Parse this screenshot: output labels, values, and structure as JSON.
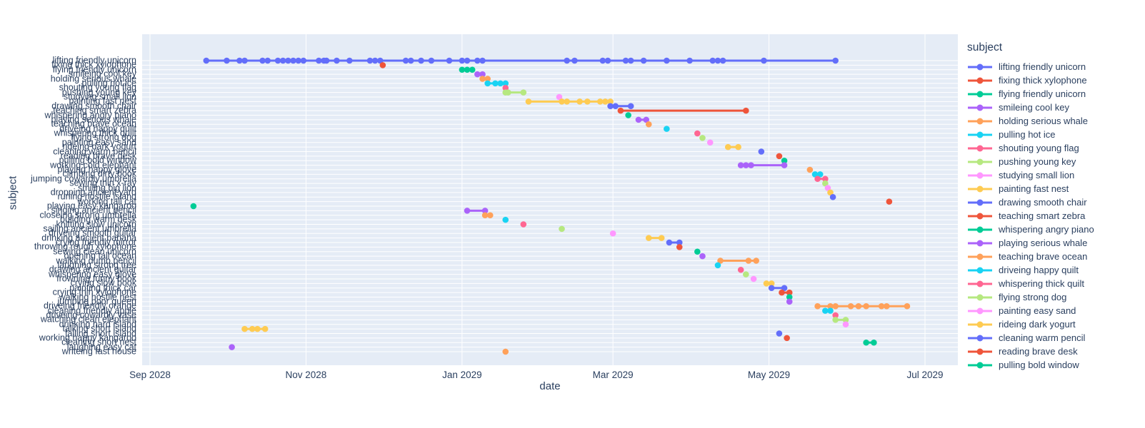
{
  "figure": {
    "colors": {
      "paper_bg": "#FFFFFF",
      "plot_bg": "#E5ECF6",
      "grid": "#FFFFFF",
      "text": "#2A3F5F"
    },
    "legend": {
      "title": "subject",
      "visible_count": 23
    }
  },
  "chart_data": {
    "type": "scatter",
    "title": "",
    "xlabel": "date",
    "ylabel": "subject",
    "legend_position": "right",
    "grid": true,
    "x_range": [
      "2028-09-01",
      "2029-07-01"
    ],
    "x_tick_dates": [
      "2028-09-01",
      "2028-11-01",
      "2029-01-01",
      "2029-03-01",
      "2029-05-01",
      "2029-07-01"
    ],
    "x_tick_labels": [
      "Sep 2028",
      "Nov 2028",
      "Jan 2029",
      "Mar 2029",
      "May 2029",
      "Jul 2029"
    ],
    "palette": [
      "#636EFA",
      "#EF553B",
      "#00CC96",
      "#AB63FA",
      "#FFA15A",
      "#19D3F3",
      "#FF6692",
      "#B6E880",
      "#FF97FF",
      "#FECB52"
    ],
    "series": [
      {
        "name": "lifting friendly unicorn",
        "dates": [
          "2028-09-23",
          "2028-10-01",
          "2028-10-06",
          "2028-10-08",
          "2028-10-15",
          "2028-10-17",
          "2028-10-21",
          "2028-10-23",
          "2028-10-25",
          "2028-10-27",
          "2028-10-29",
          "2028-10-31",
          "2028-11-06",
          "2028-11-08",
          "2028-11-09",
          "2028-11-13",
          "2028-11-18",
          "2028-11-26",
          "2028-11-28",
          "2028-11-30",
          "2028-12-10",
          "2028-12-12",
          "2028-12-16",
          "2028-12-20",
          "2028-12-27",
          "2029-01-01",
          "2029-01-03",
          "2029-01-07",
          "2029-01-09",
          "2029-02-11",
          "2029-02-14",
          "2029-02-25",
          "2029-02-27",
          "2029-03-06",
          "2029-03-08",
          "2029-03-13",
          "2029-03-22",
          "2029-03-31",
          "2029-04-09",
          "2029-04-11",
          "2029-04-13",
          "2029-04-29",
          "2029-05-27"
        ]
      },
      {
        "name": "fixing thick xylophone",
        "dates": [
          "2028-12-01"
        ]
      },
      {
        "name": "flying friendly unicorn",
        "dates": [
          "2029-01-01",
          "2029-01-03",
          "2029-01-05"
        ]
      },
      {
        "name": "smileing cool key",
        "dates": [
          "2029-01-07",
          "2029-01-09"
        ]
      },
      {
        "name": "holding serious whale",
        "dates": [
          "2029-01-09",
          "2029-01-11"
        ]
      },
      {
        "name": "pulling hot ice",
        "dates": [
          "2029-01-11",
          "2029-01-14",
          "2029-01-16",
          "2029-01-18"
        ]
      },
      {
        "name": "shouting young flag",
        "dates": [
          "2029-01-18"
        ]
      },
      {
        "name": "pushing young key",
        "dates": [
          "2029-01-18",
          "2029-01-19",
          "2029-01-25"
        ]
      },
      {
        "name": "studying small lion",
        "dates": [
          "2029-02-08"
        ]
      },
      {
        "name": "painting fast nest",
        "dates": [
          "2029-01-27",
          "2029-02-09",
          "2029-02-11",
          "2029-02-16",
          "2029-02-19",
          "2029-02-24",
          "2029-02-26",
          "2029-02-28"
        ]
      },
      {
        "name": "drawing smooth chair",
        "dates": [
          "2029-02-28",
          "2029-03-02",
          "2029-03-08"
        ]
      },
      {
        "name": "teaching smart zebra",
        "dates": [
          "2029-03-04",
          "2029-04-22"
        ]
      },
      {
        "name": "whispering angry piano",
        "dates": [
          "2029-03-07"
        ]
      },
      {
        "name": "playing serious whale",
        "dates": [
          "2029-03-11",
          "2029-03-14"
        ]
      },
      {
        "name": "teaching brave ocean",
        "dates": [
          "2029-03-15"
        ]
      },
      {
        "name": "driveing happy quilt",
        "dates": [
          "2029-03-22"
        ]
      },
      {
        "name": "whispering thick quilt",
        "dates": [
          "2029-04-03"
        ]
      },
      {
        "name": "flying strong dog",
        "dates": [
          "2029-04-05"
        ]
      },
      {
        "name": "painting easy sand",
        "dates": [
          "2029-04-08"
        ]
      },
      {
        "name": "rideing dark yogurt",
        "dates": [
          "2029-04-15",
          "2029-04-19"
        ]
      },
      {
        "name": "cleaning warm pencil",
        "dates": [
          "2029-04-28"
        ]
      },
      {
        "name": "reading brave desk",
        "dates": [
          "2029-05-05"
        ]
      },
      {
        "name": "pulling bold window",
        "dates": [
          "2029-05-07"
        ]
      },
      {
        "name": "working cold elephant",
        "dates": [
          "2029-04-20",
          "2029-04-22",
          "2029-04-24",
          "2029-05-07"
        ]
      },
      {
        "name": "playing happy glove",
        "dates": [
          "2029-05-17"
        ]
      },
      {
        "name": "climbing dirty book",
        "dates": [
          "2029-05-19",
          "2029-05-21"
        ]
      },
      {
        "name": "jumping cowardly umbrella",
        "dates": [
          "2029-05-20",
          "2029-05-23"
        ]
      },
      {
        "name": "sewing thin x-ray",
        "dates": [
          "2029-05-23"
        ]
      },
      {
        "name": "smiling big lion",
        "dates": [
          "2029-05-24"
        ]
      },
      {
        "name": "dropping ancient yard",
        "dates": [
          "2029-05-25"
        ]
      },
      {
        "name": "runing hostile island",
        "dates": [
          "2029-05-26"
        ]
      },
      {
        "name": "working tall cat",
        "dates": [
          "2029-06-17"
        ]
      },
      {
        "name": "playing easy kangaroo",
        "dates": [
          "2028-09-18"
        ]
      },
      {
        "name": "singing ancient pencil",
        "dates": [
          "2029-01-03",
          "2029-01-10"
        ]
      },
      {
        "name": "closeing strong umbrella",
        "dates": [
          "2029-01-10",
          "2029-01-12"
        ]
      },
      {
        "name": "building warm desk",
        "dates": [
          "2029-01-18"
        ]
      },
      {
        "name": "knitting slow unicorn",
        "dates": [
          "2029-01-25"
        ]
      },
      {
        "name": "sailing ancient umbrella",
        "dates": [
          "2029-02-09"
        ]
      },
      {
        "name": "driveing smooth guitar",
        "dates": [
          "2029-03-01"
        ]
      },
      {
        "name": "drinking ancient banana",
        "dates": [
          "2029-03-15",
          "2029-03-20"
        ]
      },
      {
        "name": "crying friendly mirror",
        "dates": [
          "2029-03-23",
          "2029-03-27"
        ]
      },
      {
        "name": "throwing rough xylophone",
        "dates": [
          "2029-03-27"
        ]
      },
      {
        "name": "sewing clean unicorn",
        "dates": [
          "2029-04-03"
        ]
      },
      {
        "name": "opening tall ocean",
        "dates": [
          "2029-04-05"
        ]
      },
      {
        "name": "walking dumb pencil",
        "dates": [
          "2029-04-12",
          "2029-04-23",
          "2029-04-26"
        ]
      },
      {
        "name": "laughing strong tree",
        "dates": [
          "2029-04-11"
        ]
      },
      {
        "name": "drawing ancient guitar",
        "dates": [
          "2029-04-20"
        ]
      },
      {
        "name": "whispering easy glove",
        "dates": [
          "2029-04-22"
        ]
      },
      {
        "name": "frowning funny book",
        "dates": [
          "2029-04-25"
        ]
      },
      {
        "name": "crying slow book",
        "dates": [
          "2029-04-30",
          "2029-05-02"
        ]
      },
      {
        "name": "painting thick car",
        "dates": [
          "2029-05-02",
          "2029-05-07"
        ]
      },
      {
        "name": "crying thin xylophone",
        "dates": [
          "2029-05-06",
          "2029-05-09"
        ]
      },
      {
        "name": "walking hostile nest",
        "dates": [
          "2029-05-09"
        ]
      },
      {
        "name": "jumping poor queen",
        "dates": [
          "2029-05-09"
        ]
      },
      {
        "name": "driveing friendly orange",
        "dates": [
          "2029-05-20",
          "2029-05-25",
          "2029-05-27",
          "2029-06-02",
          "2029-06-05",
          "2029-06-08",
          "2029-06-14",
          "2029-06-16",
          "2029-06-24"
        ]
      },
      {
        "name": "cleaning friendly apple",
        "dates": [
          "2029-05-23",
          "2029-05-25"
        ]
      },
      {
        "name": "driveing cowardly vase",
        "dates": [
          "2029-05-27"
        ]
      },
      {
        "name": "watching clean elephant",
        "dates": [
          "2029-05-27",
          "2029-05-31"
        ]
      },
      {
        "name": "drinking hard island",
        "dates": [
          "2029-05-31"
        ]
      },
      {
        "name": "talking short island",
        "dates": [
          "2028-10-08",
          "2028-10-11",
          "2028-10-13",
          "2028-10-16"
        ]
      },
      {
        "name": "falling short island",
        "dates": [
          "2029-05-05"
        ]
      },
      {
        "name": "working happy kangaroo",
        "dates": [
          "2029-05-08"
        ]
      },
      {
        "name": "cleaning short nest",
        "dates": [
          "2029-06-08",
          "2029-06-11"
        ]
      },
      {
        "name": "laughing easy cat",
        "dates": [
          "2028-10-03"
        ]
      },
      {
        "name": "writeing fast house",
        "dates": [
          "2029-01-18"
        ]
      }
    ]
  }
}
